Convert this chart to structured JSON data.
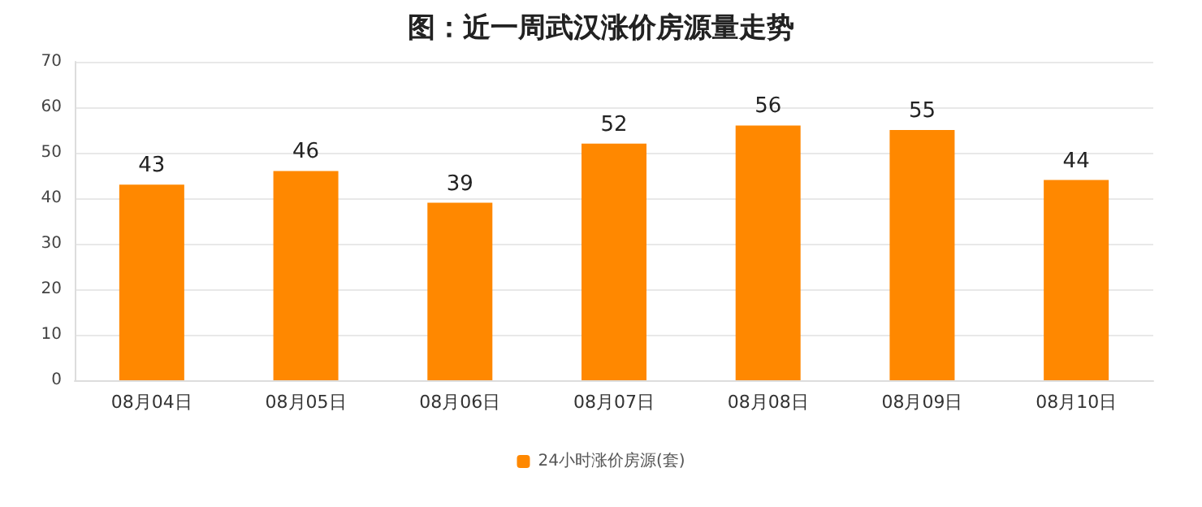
{
  "chart_data": {
    "type": "bar",
    "title": "图：近一周武汉涨价房源量走势",
    "categories": [
      "08月04日",
      "08月05日",
      "08月06日",
      "08月07日",
      "08月08日",
      "08月09日",
      "08月10日"
    ],
    "series": [
      {
        "name": "24小时涨价房源(套)",
        "color": "#ff8800",
        "values": [
          43,
          46,
          39,
          52,
          56,
          55,
          44
        ]
      }
    ],
    "ylim": [
      0,
      70
    ],
    "yticks": [
      0,
      10,
      20,
      30,
      40,
      50,
      60,
      70
    ],
    "grid": "y",
    "legend": "bottom",
    "data_labels": true
  }
}
